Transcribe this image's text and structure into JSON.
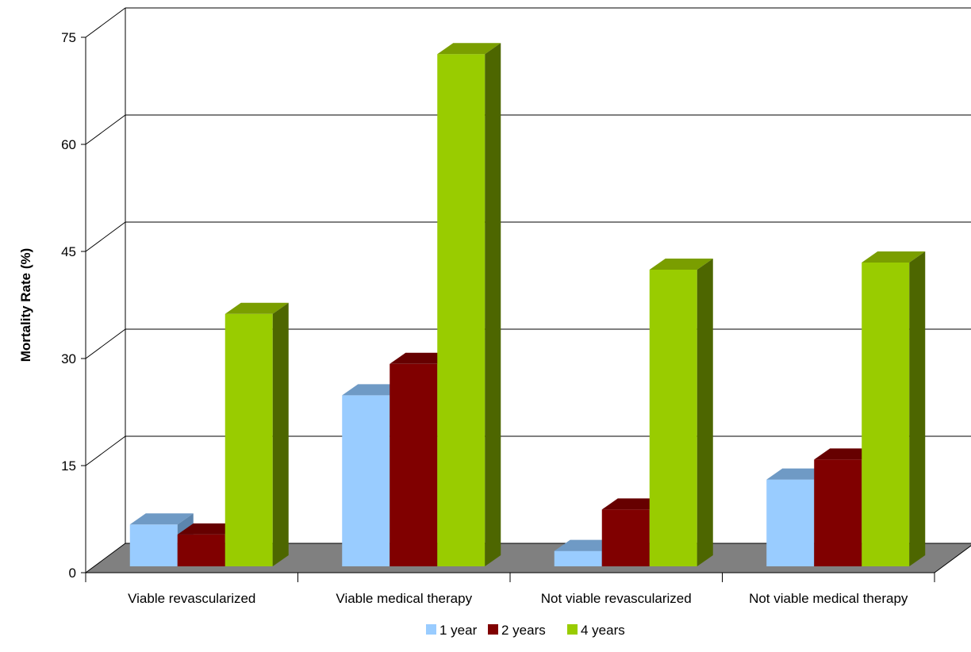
{
  "chart_data": {
    "type": "bar",
    "style": "3d-clustered-column",
    "title": "",
    "xlabel": "",
    "ylabel": "Mortality Rate (%)",
    "ylim": [
      0,
      75
    ],
    "yticks": [
      0,
      15,
      30,
      45,
      60,
      75
    ],
    "ytick_labels": [
      "0",
      "15",
      "30",
      "45",
      "60",
      "75"
    ],
    "grid": true,
    "legend_position": "bottom",
    "categories": [
      "Viable revascularized",
      "Viable medical therapy",
      "Not viable revascularized",
      "Not viable medical therapy"
    ],
    "series": [
      {
        "name": "1 year",
        "values": [
          6.3,
          24.4,
          2.6,
          12.6
        ],
        "color": "#99ccff",
        "top_color": "#6f9ac5",
        "side_color": "#5c85ad"
      },
      {
        "name": "2 years",
        "values": [
          4.9,
          28.8,
          8.4,
          15.4
        ],
        "color": "#800000",
        "top_color": "#660000",
        "side_color": "#4d0000"
      },
      {
        "name": "4 years",
        "values": [
          35.8,
          72.2,
          42.0,
          43.0
        ],
        "color": "#99cc00",
        "top_color": "#7a9e00",
        "side_color": "#4d6600"
      }
    ]
  }
}
